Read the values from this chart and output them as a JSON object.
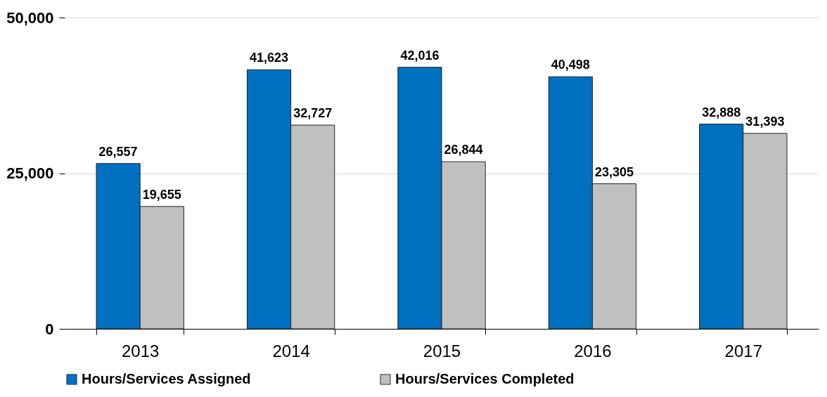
{
  "chart_data": {
    "type": "bar",
    "categories": [
      "2013",
      "2014",
      "2015",
      "2016",
      "2017"
    ],
    "series": [
      {
        "name": "Hours/Services Assigned",
        "color": "#0070c0",
        "values": [
          26557,
          41623,
          42016,
          40498,
          32888
        ],
        "value_labels": [
          "26,557",
          "41,623",
          "42,016",
          "40,498",
          "32,888"
        ]
      },
      {
        "name": "Hours/Services Completed",
        "color": "#c0c0c0",
        "values": [
          19655,
          32727,
          26844,
          23305,
          31393
        ],
        "value_labels": [
          "19,655",
          "32,727",
          "26,844",
          "23,305",
          "31,393"
        ]
      }
    ],
    "ylim": [
      0,
      50000
    ],
    "yticks": [
      {
        "value": 0,
        "label": "0"
      },
      {
        "value": 25000,
        "label": "25,000"
      },
      {
        "value": 50000,
        "label": "50,000"
      }
    ],
    "grid": "y",
    "legend": "bottom"
  }
}
